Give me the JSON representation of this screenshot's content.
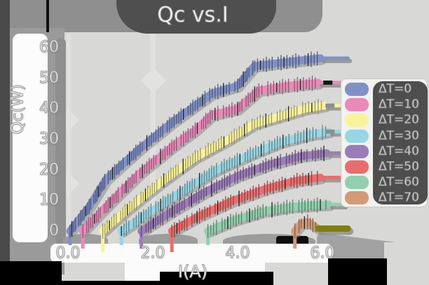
{
  "title": "Qc vs.I",
  "axes": {
    "x_label": "I(A)",
    "y_label": "Qc(W)",
    "x_ticks": [
      "0.0",
      "2.0",
      "4.0",
      "6.0"
    ],
    "y_ticks": [
      "0",
      "10",
      "20",
      "30",
      "40",
      "50",
      "60"
    ]
  },
  "legend": {
    "items": [
      {
        "label": "ΔT=0"
      },
      {
        "label": "ΔT=10"
      },
      {
        "label": "ΔT=20"
      },
      {
        "label": "ΔT=30"
      },
      {
        "label": "ΔT=40"
      },
      {
        "label": "ΔT=50"
      },
      {
        "label": "ΔT=60"
      },
      {
        "label": "ΔT=70"
      }
    ]
  },
  "chart_data": {
    "type": "line",
    "title": "Qc vs.I",
    "xlabel": "I(A)",
    "ylabel": "Qc(W)",
    "xlim": [
      0,
      6.8
    ],
    "ylim": [
      0,
      60
    ],
    "x_tick_values": [
      0,
      2,
      4,
      6
    ],
    "y_tick_values": [
      0,
      10,
      20,
      30,
      40,
      50,
      60
    ],
    "grid": false,
    "legend_position": "right",
    "style": "xkcd-thick-bands-with-error-ticks",
    "series": [
      {
        "name": "ΔT=0",
        "color": "#8191c8",
        "x": [
          0.05,
          0.5,
          0.9,
          1.7,
          2.5,
          3.0,
          3.4,
          4.0,
          4.4,
          5.3,
          5.95
        ],
        "y": [
          0,
          8,
          17,
          27,
          36,
          41,
          45,
          47.5,
          54,
          55.5,
          56.5
        ],
        "tail": 6.6
      },
      {
        "name": "ΔT=10",
        "color": "#e98ab9",
        "x": [
          0.35,
          0.9,
          1.7,
          2.5,
          3.0,
          3.4,
          4.0,
          4.5,
          5.2,
          5.9
        ],
        "y": [
          0,
          8,
          19,
          28,
          33,
          38,
          40,
          46,
          47.5,
          48.5
        ],
        "tail": 6.45,
        "tail_shadow": "#161616"
      },
      {
        "name": "ΔT=20",
        "color": "#f9f49c",
        "x": [
          0.82,
          1.4,
          2.2,
          3.0,
          3.8,
          4.4,
          5.0,
          5.6,
          6.05
        ],
        "y": [
          0,
          7,
          16,
          24,
          30,
          35,
          37.5,
          40,
          41
        ],
        "tail": 6.5,
        "tail_shadow": "#8f8f8f"
      },
      {
        "name": "ΔT=30",
        "color": "#99d6e3",
        "x": [
          1.26,
          1.9,
          2.7,
          3.5,
          4.3,
          5.0,
          5.7,
          6.15
        ],
        "y": [
          0,
          6,
          13,
          20,
          25,
          29,
          31.5,
          32.5
        ],
        "tail": 6.5,
        "tail_shadow": "#8f8f8f"
      },
      {
        "name": "ΔT=40",
        "color": "#9c7cb8",
        "x": [
          1.73,
          2.4,
          3.2,
          4.0,
          4.8,
          5.5,
          6.1
        ],
        "y": [
          0,
          6,
          12.5,
          18,
          22,
          24.5,
          25.5
        ],
        "tail": 6.5
      },
      {
        "name": "ΔT=50",
        "color": "#ea6d6d",
        "x": [
          2.45,
          3.1,
          3.9,
          4.7,
          5.4,
          5.95
        ],
        "y": [
          0,
          5,
          10,
          14,
          16.5,
          17.5
        ],
        "tail": 6.4
      },
      {
        "name": "ΔT=60",
        "color": "#92cfad",
        "x": [
          3.3,
          3.9,
          4.6,
          5.3,
          5.95,
          6.15
        ],
        "y": [
          0,
          3.5,
          6.5,
          8,
          8.6,
          8.7
        ],
        "tail": 6.5
      },
      {
        "name": "ΔT=70",
        "color": "#d39b77",
        "x": [
          5.35,
          5.5,
          5.65,
          5.9
        ],
        "y": [
          0,
          2.5,
          3,
          0.8
        ],
        "tail": 6.6,
        "tail_color": "#7f7f10",
        "tail_width": 9
      }
    ]
  }
}
